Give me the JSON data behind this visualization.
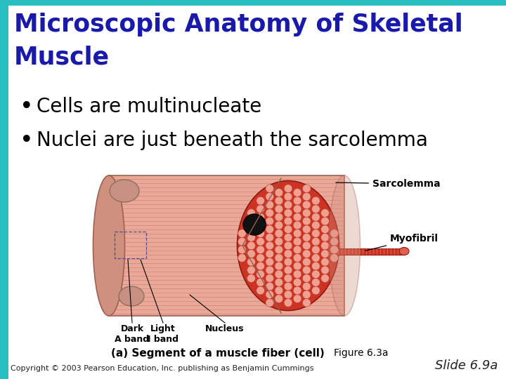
{
  "title_line1": "Microscopic Anatomy of Skeletal",
  "title_line2": "Muscle",
  "title_color": "#1a1aaa",
  "title_fontsize": 25,
  "bullet1": "Cells are multinucleate",
  "bullet2": "Nuclei are just beneath the sarcolemma",
  "bullet_color": "#000000",
  "bullet_fontsize": 20,
  "top_bar_color": "#2ABFBF",
  "left_bar_color": "#2ABFBF",
  "bg_color": "#FFFFFF",
  "image_caption": "(a) Segment of a muscle fiber (cell)",
  "figure_ref": "Figure 6.3a",
  "copyright_text": "Copyright © 2003 Pearson Education, Inc. publishing as Benjamin Cummings",
  "slide_text": "Slide 6.9a",
  "caption_fontsize": 11,
  "copyright_fontsize": 8,
  "slide_fontsize": 13,
  "cyl_color": "#EAA898",
  "cyl_stripe": "#C88070",
  "cyl_edge": "#A06050",
  "interior_bg": "#CC3322",
  "cell_fill": "#F0A090",
  "cell_edge": "#C04030",
  "myo_fill": "#CC3322",
  "nucleus_fill": "#111111",
  "nuc_bump_fill": "#C09080",
  "label_color": "#000000"
}
